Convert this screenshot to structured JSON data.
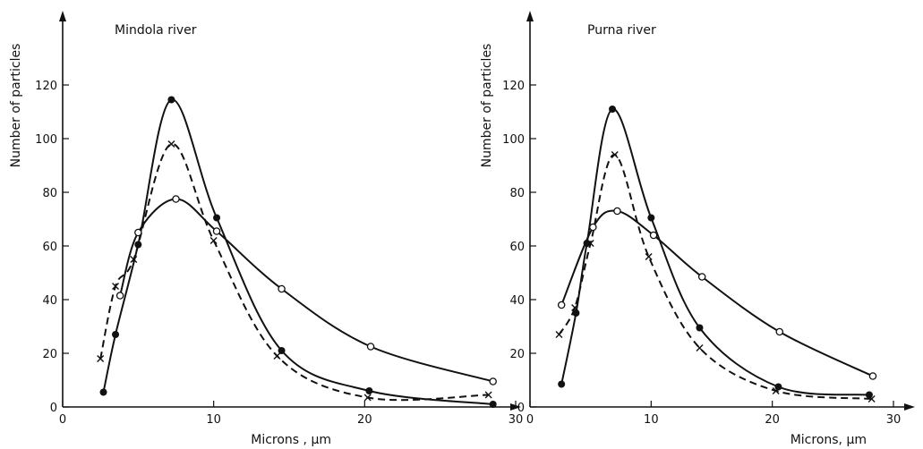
{
  "chart_data": [
    {
      "type": "line",
      "title": "Mindola river",
      "xlabel": "Microns , µm",
      "ylabel": "Number of particles",
      "xlim": [
        0,
        30
      ],
      "ylim": [
        0,
        125
      ],
      "xticks": [
        "0",
        "10",
        "20",
        "30"
      ],
      "yticks": [
        "0",
        "20",
        "40",
        "60",
        "80",
        "100",
        "120"
      ],
      "grid": false,
      "series": [
        {
          "marker": "filled-circle",
          "style": "solid",
          "points": [
            [
              2.7,
              5.5
            ],
            [
              3.5,
              27
            ],
            [
              5,
              60.5
            ],
            [
              7.2,
              114.5
            ],
            [
              10.2,
              70.5
            ],
            [
              14.5,
              21
            ],
            [
              20.3,
              6
            ],
            [
              28.5,
              1
            ]
          ]
        },
        {
          "marker": "x",
          "style": "dashed",
          "points": [
            [
              2.5,
              18
            ],
            [
              3.5,
              45
            ],
            [
              4.7,
              55
            ],
            [
              7.2,
              98
            ],
            [
              10,
              62
            ],
            [
              14.2,
              19
            ],
            [
              20.2,
              3.5
            ],
            [
              28.2,
              4.5
            ]
          ]
        },
        {
          "marker": "open-circle",
          "style": "solid",
          "points": [
            [
              3.8,
              41.5
            ],
            [
              5,
              65
            ],
            [
              7.5,
              77.5
            ],
            [
              10.2,
              65.5
            ],
            [
              14.5,
              44
            ],
            [
              20.4,
              22.5
            ],
            [
              28.5,
              9.5
            ]
          ]
        }
      ]
    },
    {
      "type": "line",
      "title": "Purna river",
      "xlabel": "Microns, µm",
      "ylabel": "Number of particles",
      "xlim": [
        0,
        30
      ],
      "ylim": [
        0,
        125
      ],
      "xticks": [
        "0",
        "10",
        "20",
        "30"
      ],
      "yticks": [
        "0",
        "20",
        "40",
        "60",
        "80",
        "100",
        "120"
      ],
      "grid": false,
      "series": [
        {
          "marker": "filled-circle",
          "style": "solid",
          "points": [
            [
              2.6,
              8.5
            ],
            [
              3.8,
              35
            ],
            [
              4.7,
              61
            ],
            [
              6.8,
              111
            ],
            [
              10,
              70.5
            ],
            [
              14,
              29.5
            ],
            [
              20.5,
              7.5
            ],
            [
              28,
              4.5
            ]
          ]
        },
        {
          "marker": "x",
          "style": "dashed",
          "points": [
            [
              2.4,
              27
            ],
            [
              3.7,
              37
            ],
            [
              5,
              61
            ],
            [
              7,
              94
            ],
            [
              9.8,
              56
            ],
            [
              14,
              22
            ],
            [
              20.3,
              6
            ],
            [
              28.2,
              3
            ]
          ]
        },
        {
          "marker": "open-circle",
          "style": "solid",
          "points": [
            [
              2.6,
              38
            ],
            [
              5.2,
              67
            ],
            [
              7.2,
              73
            ],
            [
              10.2,
              64
            ],
            [
              14.2,
              48.5
            ],
            [
              20.6,
              28
            ],
            [
              28.3,
              11.5
            ]
          ]
        }
      ]
    }
  ]
}
